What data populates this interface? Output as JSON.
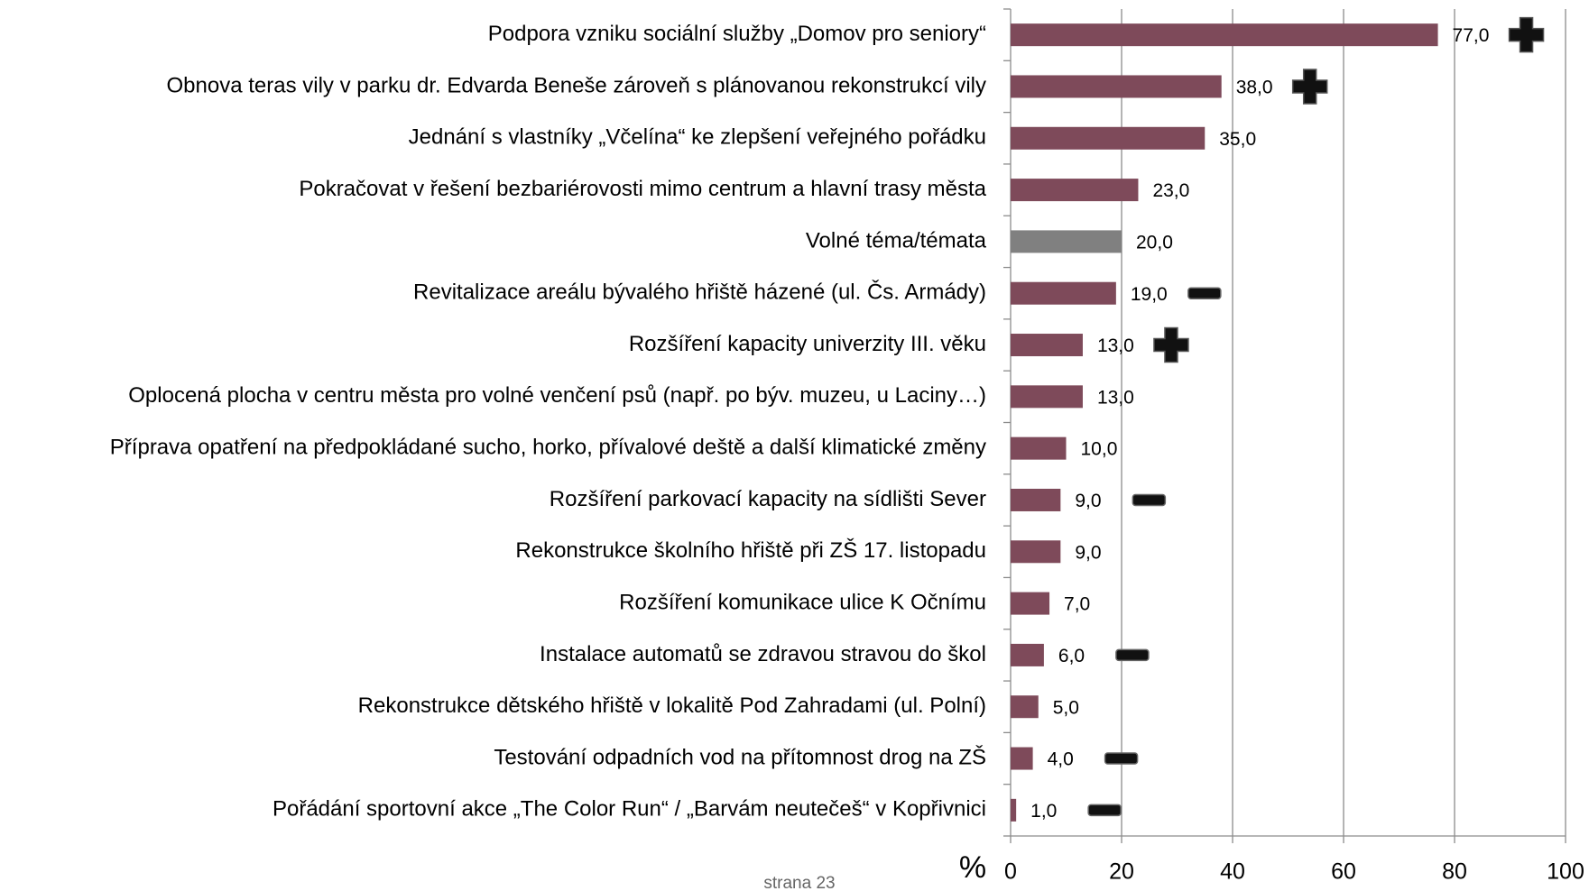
{
  "chart_data": {
    "type": "bar",
    "orientation": "horizontal",
    "categories": [
      "Podpora vzniku sociální služby „Domov pro seniory“",
      "Obnova teras vily v parku dr. Edvarda Beneše zároveň s plánovanou rekonstrukcí vily",
      "Jednání s vlastníky „Včelína“ ke zlepšení veřejného pořádku",
      "Pokračovat v řešení bezbariérovosti mimo centrum a hlavní trasy města",
      "Volné téma/témata",
      "Revitalizace areálu bývalého hřiště házené (ul. Čs. Armády)",
      "Rozšíření kapacity univerzity III. věku",
      "Oplocená plocha v centru města pro volné venčení psů (např. po býv. muzeu, u Laciny…)",
      "Příprava opatření na předpokládané sucho, horko, přívalové deště a další klimatické změny",
      "Rozšíření parkovací kapacity na sídlišti Sever",
      "Rekonstrukce školního hřiště při ZŠ 17. listopadu",
      "Rozšíření komunikace ulice K Očnímu",
      "Instalace automatů se zdravou stravou do škol",
      "Rekonstrukce dětského hřiště v lokalitě Pod Zahradami (ul. Polní)",
      "Testování odpadních vod na přítomnost drog na ZŠ",
      "Pořádání sportovní akce „The Color Run“  / „Barvám neutečeš“ v Kopřivnici"
    ],
    "values": [
      77,
      38,
      35,
      23,
      20,
      19,
      13,
      13,
      10,
      9,
      9,
      7,
      6,
      5,
      4,
      1
    ],
    "value_labels": [
      "77,0",
      "38,0",
      "35,0",
      "23,0",
      "20,0",
      "19,0",
      "13,0",
      "13,0",
      "10,0",
      "9,0",
      "9,0",
      "7,0",
      "6,0",
      "5,0",
      "4,0",
      "1,0"
    ],
    "colors": [
      "#7e4a5a",
      "#7e4a5a",
      "#7e4a5a",
      "#7e4a5a",
      "#808080",
      "#7e4a5a",
      "#7e4a5a",
      "#7e4a5a",
      "#7e4a5a",
      "#7e4a5a",
      "#7e4a5a",
      "#7e4a5a",
      "#7e4a5a",
      "#7e4a5a",
      "#7e4a5a",
      "#7e4a5a"
    ],
    "markers": [
      "plus",
      "plus",
      null,
      null,
      null,
      "minus",
      "plus",
      null,
      null,
      "minus",
      null,
      null,
      "minus",
      null,
      "minus",
      "minus"
    ],
    "xlabel": "%",
    "xlim": [
      0,
      100
    ],
    "xticks": [
      0,
      20,
      40,
      60,
      80,
      100
    ],
    "grid": true
  },
  "footer": "strana 23"
}
